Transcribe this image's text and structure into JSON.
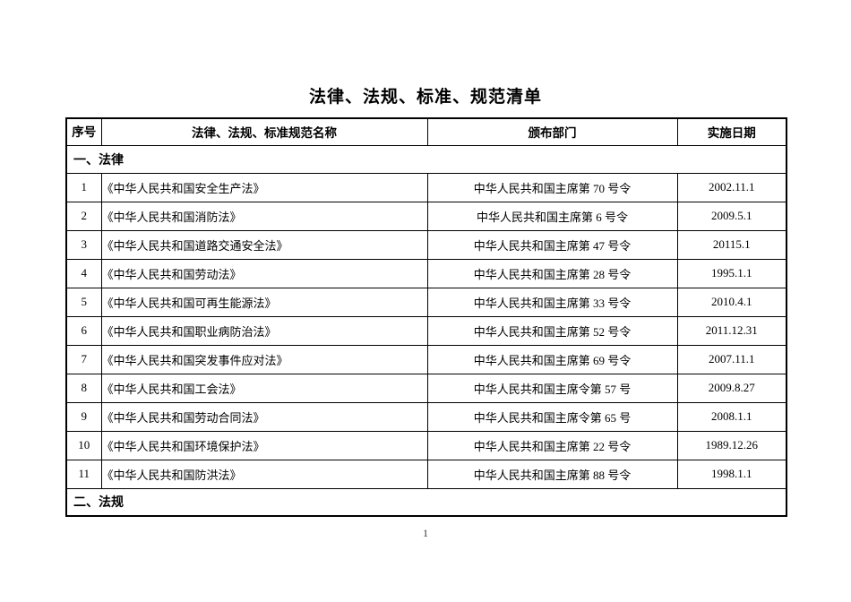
{
  "title": "法律、法规、标准、规范清单",
  "table": {
    "headers": [
      "序号",
      "法律、法规、标准规范名称",
      "颁布部门",
      "实施日期"
    ],
    "sections": [
      {
        "label": "一、法律",
        "rows": [
          {
            "no": "1",
            "name": "《中华人民共和国安全生产法》",
            "dept": "中华人民共和国主席第 70 号令",
            "date": "2002.11.1"
          },
          {
            "no": "2",
            "name": "《中华人民共和国消防法》",
            "dept": "中华人民共和国主席第 6 号令",
            "date": "2009.5.1"
          },
          {
            "no": "3",
            "name": "《中华人民共和国道路交通安全法》",
            "dept": "中华人民共和国主席第 47 号令",
            "date": "20115.1"
          },
          {
            "no": "4",
            "name": "《中华人民共和国劳动法》",
            "dept": "中华人民共和国主席第 28 号令",
            "date": "1995.1.1"
          },
          {
            "no": "5",
            "name": "《中华人民共和国可再生能源法》",
            "dept": "中华人民共和国主席第 33 号令",
            "date": "2010.4.1"
          },
          {
            "no": "6",
            "name": "《中华人民共和国职业病防治法》",
            "dept": "中华人民共和国主席第 52 号令",
            "date": "2011.12.31"
          },
          {
            "no": "7",
            "name": "《中华人民共和国突发事件应对法》",
            "dept": "中华人民共和国主席第 69 号令",
            "date": "2007.11.1"
          },
          {
            "no": "8",
            "name": "《中华人民共和国工会法》",
            "dept": "中华人民共和国主席令第 57 号",
            "date": "2009.8.27"
          },
          {
            "no": "9",
            "name": "《中华人民共和国劳动合同法》",
            "dept": "中华人民共和国主席令第 65 号",
            "date": "2008.1.1"
          },
          {
            "no": "10",
            "name": "《中华人民共和国环境保护法》",
            "dept": "中华人民共和国主席第 22 号令",
            "date": "1989.12.26"
          },
          {
            "no": "11",
            "name": "《中华人民共和国防洪法》",
            "dept": "中华人民共和国主席第 88 号令",
            "date": "1998.1.1"
          }
        ]
      },
      {
        "label": "二、法规",
        "rows": []
      }
    ]
  },
  "footer": {
    "page_number": "1"
  }
}
